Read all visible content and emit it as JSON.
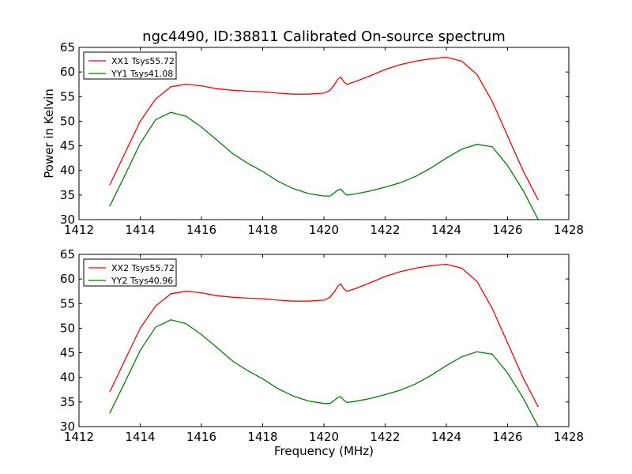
{
  "figure": {
    "title": "ngc4490, ID:38811 Calibrated On-source spectrum",
    "xlabel": "Frequency (MHz)",
    "ylabel": "Power in Kelvin"
  },
  "chart_data": [
    {
      "type": "line",
      "title": "ngc4490, ID:38811 Calibrated On-source spectrum",
      "xlabel": "",
      "ylabel": "Power in Kelvin",
      "xlim": [
        1412,
        1428
      ],
      "ylim": [
        30,
        65
      ],
      "xticks": [
        1412,
        1414,
        1416,
        1418,
        1420,
        1422,
        1424,
        1426,
        1428
      ],
      "yticks": [
        30,
        35,
        40,
        45,
        50,
        55,
        60,
        65
      ],
      "grid": false,
      "legend": "top-left",
      "series": [
        {
          "name": "XX1 Tsys55.72",
          "color": "#ff0000",
          "x": [
            1413.0,
            1413.5,
            1414.0,
            1414.5,
            1415.0,
            1415.5,
            1416.0,
            1416.5,
            1417.0,
            1417.5,
            1418.0,
            1418.5,
            1419.0,
            1419.5,
            1420.0,
            1420.2,
            1420.35,
            1420.45,
            1420.55,
            1420.65,
            1420.75,
            1421.0,
            1421.5,
            1422.0,
            1422.5,
            1423.0,
            1423.5,
            1424.0,
            1424.5,
            1425.0,
            1425.5,
            1426.0,
            1426.5,
            1427.0
          ],
          "y": [
            37.0,
            43.5,
            50.0,
            54.5,
            57.0,
            57.5,
            57.2,
            56.6,
            56.3,
            56.1,
            56.0,
            55.7,
            55.5,
            55.5,
            55.7,
            56.3,
            57.5,
            58.5,
            59.0,
            58.0,
            57.5,
            58.0,
            59.2,
            60.5,
            61.5,
            62.2,
            62.7,
            63.0,
            62.2,
            59.5,
            54.0,
            47.0,
            40.0,
            34.0
          ]
        },
        {
          "name": "YY1 Tsys41.08",
          "color": "#008000",
          "x": [
            1413.0,
            1413.5,
            1414.0,
            1414.5,
            1415.0,
            1415.5,
            1416.0,
            1416.5,
            1417.0,
            1417.5,
            1418.0,
            1418.5,
            1419.0,
            1419.5,
            1420.0,
            1420.2,
            1420.35,
            1420.45,
            1420.55,
            1420.65,
            1420.75,
            1421.0,
            1421.5,
            1422.0,
            1422.5,
            1423.0,
            1423.5,
            1424.0,
            1424.5,
            1425.0,
            1425.5,
            1426.0,
            1426.5,
            1427.0
          ],
          "y": [
            32.7,
            39.0,
            45.5,
            50.3,
            51.8,
            51.0,
            48.8,
            46.2,
            43.5,
            41.5,
            39.8,
            37.8,
            36.3,
            35.3,
            34.8,
            34.8,
            35.5,
            36.0,
            36.2,
            35.5,
            35.0,
            35.2,
            35.8,
            36.6,
            37.5,
            38.8,
            40.5,
            42.5,
            44.3,
            45.3,
            44.8,
            41.0,
            36.0,
            30.0
          ]
        }
      ]
    },
    {
      "type": "line",
      "title": "",
      "xlabel": "Frequency (MHz)",
      "ylabel": "",
      "xlim": [
        1412,
        1428
      ],
      "ylim": [
        30,
        65
      ],
      "xticks": [
        1412,
        1414,
        1416,
        1418,
        1420,
        1422,
        1424,
        1426,
        1428
      ],
      "yticks": [
        30,
        35,
        40,
        45,
        50,
        55,
        60,
        65
      ],
      "grid": false,
      "legend": "top-left",
      "series": [
        {
          "name": "XX2 Tsys55.72",
          "color": "#ff0000",
          "x": [
            1413.0,
            1413.5,
            1414.0,
            1414.5,
            1415.0,
            1415.5,
            1416.0,
            1416.5,
            1417.0,
            1417.5,
            1418.0,
            1418.5,
            1419.0,
            1419.5,
            1420.0,
            1420.2,
            1420.35,
            1420.45,
            1420.55,
            1420.65,
            1420.75,
            1421.0,
            1421.5,
            1422.0,
            1422.5,
            1423.0,
            1423.5,
            1424.0,
            1424.5,
            1425.0,
            1425.5,
            1426.0,
            1426.5,
            1427.0
          ],
          "y": [
            37.0,
            43.5,
            50.0,
            54.5,
            57.0,
            57.5,
            57.2,
            56.6,
            56.3,
            56.1,
            56.0,
            55.7,
            55.5,
            55.5,
            55.7,
            56.3,
            57.5,
            58.5,
            59.0,
            58.0,
            57.5,
            58.0,
            59.2,
            60.5,
            61.5,
            62.2,
            62.7,
            63.0,
            62.2,
            59.5,
            54.0,
            47.0,
            40.0,
            34.0
          ]
        },
        {
          "name": "YY2 Tsys40.96",
          "color": "#008000",
          "x": [
            1413.0,
            1413.5,
            1414.0,
            1414.5,
            1415.0,
            1415.5,
            1416.0,
            1416.5,
            1417.0,
            1417.5,
            1418.0,
            1418.5,
            1419.0,
            1419.5,
            1420.0,
            1420.2,
            1420.35,
            1420.45,
            1420.55,
            1420.65,
            1420.75,
            1421.0,
            1421.5,
            1422.0,
            1422.5,
            1423.0,
            1423.5,
            1424.0,
            1424.5,
            1425.0,
            1425.5,
            1426.0,
            1426.5,
            1427.0
          ],
          "y": [
            32.7,
            39.0,
            45.5,
            50.2,
            51.7,
            50.9,
            48.7,
            46.1,
            43.4,
            41.4,
            39.7,
            37.7,
            36.2,
            35.2,
            34.7,
            34.7,
            35.4,
            35.9,
            36.1,
            35.4,
            34.9,
            35.1,
            35.7,
            36.5,
            37.4,
            38.7,
            40.4,
            42.4,
            44.2,
            45.2,
            44.7,
            40.9,
            35.9,
            30.0
          ]
        }
      ]
    }
  ]
}
